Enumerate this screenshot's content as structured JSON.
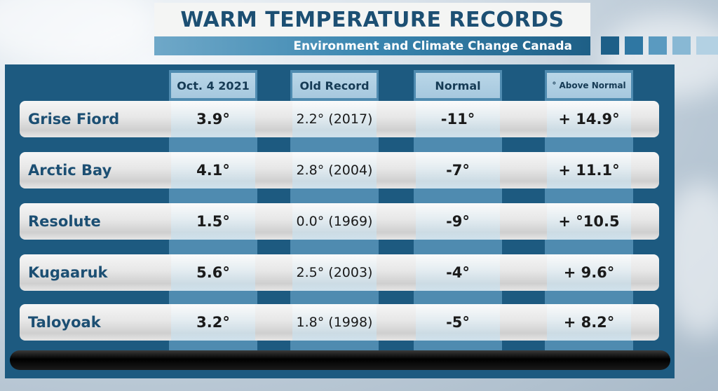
{
  "title": "WARM TEMPERATURE RECORDS",
  "subtitle": "Environment and Climate Change Canada",
  "columns": [
    "Oct. 4 2021",
    "Old Record",
    "Normal",
    "° Above Normal"
  ],
  "rows": [
    {
      "city": "Grise Fiord",
      "today": "3.9°",
      "old": "2.2° (2017)",
      "normal": "-11°",
      "above": "+ 14.9°"
    },
    {
      "city": "Arctic Bay",
      "today": "4.1°",
      "old": "2.8° (2004)",
      "normal": "-7°",
      "above": "+ 11.1°"
    },
    {
      "city": "Resolute",
      "today": "1.5°",
      "old": "0.0° (1969)",
      "normal": "-9°",
      "above": "+ °10.5"
    },
    {
      "city": "Kugaaruk",
      "today": "5.6°",
      "old": "2.5° (2003)",
      "normal": "-4°",
      "above": "+ 9.6°"
    },
    {
      "city": "Taloyoak",
      "today": "3.2°",
      "old": "1.8° (1998)",
      "normal": "-5°",
      "above": "+ 8.2°"
    }
  ],
  "colors": {
    "title": "#1c4f73",
    "panel": "#1d5a80",
    "header": "#b9d6e8"
  }
}
